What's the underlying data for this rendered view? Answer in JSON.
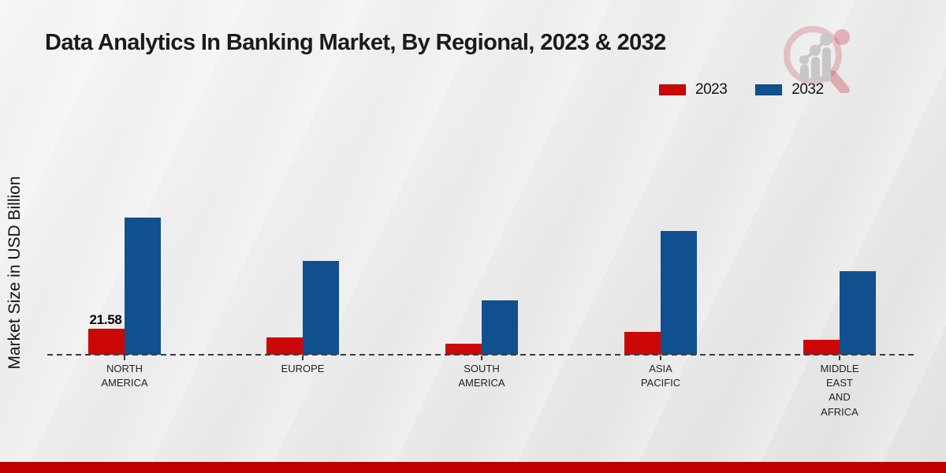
{
  "title": "Data Analytics In Banking Market, By Regional, 2023 & 2032",
  "ylabel": "Market Size in USD Billion",
  "legend": {
    "items": [
      {
        "label": "2023",
        "color": "#cc0707"
      },
      {
        "label": "2032",
        "color": "#11508e"
      }
    ]
  },
  "colors": {
    "bar_2023": "#cc0707",
    "bar_2032": "#11508e",
    "footer_band": "#c10000",
    "baseline": "#3c3c3c"
  },
  "logo_icon": "magnifier-bar-chart-logo",
  "chart_data": {
    "type": "bar",
    "title": "Data Analytics In Banking Market, By Regional, 2023 & 2032",
    "xlabel": "",
    "ylabel": "Market Size in USD Billion",
    "categories": [
      "NORTH AMERICA",
      "EUROPE",
      "SOUTH AMERICA",
      "ASIA PACIFIC",
      "MIDDLE EAST AND AFRICA"
    ],
    "series": [
      {
        "name": "2023",
        "color": "#cc0707",
        "values": [
          21.58,
          14.4,
          9.2,
          18.8,
          12.4
        ]
      },
      {
        "name": "2032",
        "color": "#11508e",
        "values": [
          113.8,
          77.8,
          45.1,
          102.7,
          69.3
        ]
      }
    ],
    "value_labels": [
      {
        "series_index": 0,
        "category_index": 0,
        "text": "21.58"
      }
    ],
    "ylim": [
      0,
      120
    ],
    "grid": false,
    "baseline_style": "dashed",
    "legend_position": "top-right",
    "note": "Only the North America 2023 bar carries a printed value label (21.58); other values estimated from bar heights."
  }
}
